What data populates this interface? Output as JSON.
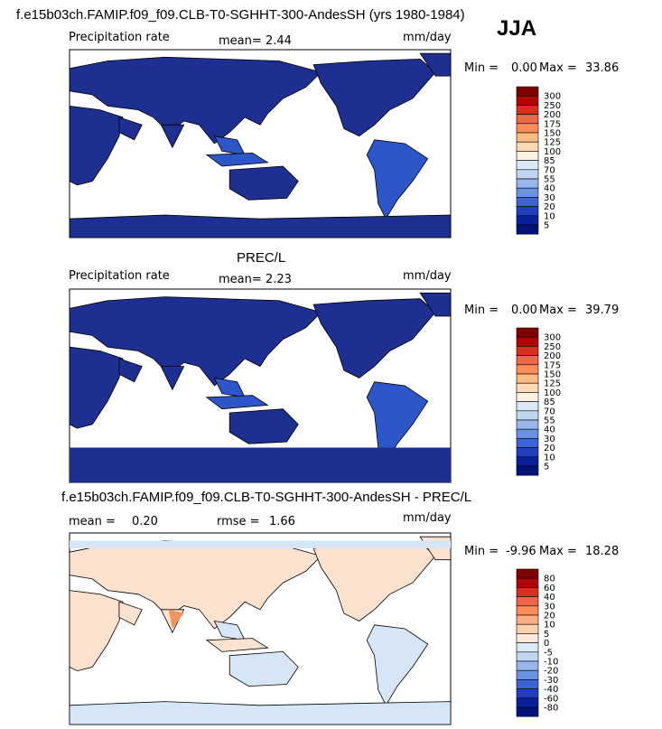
{
  "header": {
    "title": "f.e15b03ch.FAMIP.f09_f09.CLB-T0-SGHHT-300-AndesSH (yrs 1980-1984)",
    "season": "JJA"
  },
  "panels": [
    {
      "id": "model",
      "label_left": "Precipitation rate",
      "mean_label": "mean=",
      "mean_value": "2.44",
      "units": "mm/day",
      "min_label": "Min =",
      "min_value": "0.00",
      "max_label": "Max =",
      "max_value": "33.86",
      "colorbar_id": "prec",
      "style": "abs"
    },
    {
      "id": "obs",
      "title": "PREC/L",
      "label_left": "Precipitation rate",
      "mean_label": "mean=",
      "mean_value": "2.23",
      "units": "mm/day",
      "min_label": "Min =",
      "min_value": "0.00",
      "max_label": "Max =",
      "max_value": "39.79",
      "colorbar_id": "prec",
      "style": "obs"
    },
    {
      "id": "diff",
      "title": "f.e15b03ch.FAMIP.f09_f09.CLB-T0-SGHHT-300-AndesSH - PREC/L",
      "mean_label": "mean =",
      "mean_value": "0.20",
      "rmse_label": "rmse =",
      "rmse_value": "1.66",
      "units": "mm/day",
      "min_label": "Min =",
      "min_value": "-9.96",
      "max_label": "Max =",
      "max_value": "18.28",
      "colorbar_id": "diff",
      "style": "diff"
    }
  ],
  "colorbars": {
    "prec": {
      "labels": [
        "300",
        "250",
        "200",
        "175",
        "150",
        "125",
        "100",
        "85",
        "70",
        "55",
        "40",
        "30",
        "20",
        "10",
        "5"
      ],
      "colors": [
        "#7f0000",
        "#b30000",
        "#d7301f",
        "#ef6548",
        "#fc8d59",
        "#fdbb84",
        "#fdd9b5",
        "#fff2e2",
        "#dbe9f6",
        "#c0d5f2",
        "#97b7ec",
        "#6a93e3",
        "#3d63d8",
        "#1f3fbf",
        "#0a1f9a",
        "#00137a"
      ]
    },
    "diff": {
      "labels": [
        "80",
        "60",
        "40",
        "30",
        "20",
        "10",
        "5",
        "0",
        "-5",
        "-10",
        "-20",
        "-30",
        "-40",
        "-60",
        "-80"
      ],
      "colors": [
        "#7f0000",
        "#b30000",
        "#d7301f",
        "#ef6548",
        "#fc8d59",
        "#fdae82",
        "#fdd0ae",
        "#fde9d9",
        "#dceaf8",
        "#c0d5f2",
        "#97b7ec",
        "#6a93e3",
        "#3d63d8",
        "#1f3fbf",
        "#0a1f9a",
        "#00137a"
      ]
    }
  },
  "map_colors": {
    "ocean": "#ffffff",
    "land_dry": "#1d2f91",
    "land_wet": "#2d56c9",
    "diff_pos": "#fde3cf",
    "diff_neg": "#d6e6f7",
    "diff_strong": "#f09560"
  },
  "chart_data": [
    {
      "type": "heatmap",
      "title": "Precipitation rate",
      "units": "mm/day",
      "stats": {
        "mean": 2.44,
        "min": 0.0,
        "max": 33.86
      },
      "levels": [
        5,
        10,
        20,
        30,
        40,
        55,
        70,
        85,
        100,
        125,
        150,
        175,
        200,
        250,
        300
      ]
    },
    {
      "type": "heatmap",
      "title": "PREC/L",
      "units": "mm/day",
      "stats": {
        "mean": 2.23,
        "min": 0.0,
        "max": 39.79
      },
      "levels": [
        5,
        10,
        20,
        30,
        40,
        55,
        70,
        85,
        100,
        125,
        150,
        175,
        200,
        250,
        300
      ]
    },
    {
      "type": "heatmap",
      "title": "f.e15b03ch.FAMIP.f09_f09.CLB-T0-SGHHT-300-AndesSH - PREC/L",
      "units": "mm/day",
      "stats": {
        "mean": 0.2,
        "rmse": 1.66,
        "min": -9.96,
        "max": 18.28
      },
      "levels": [
        -80,
        -60,
        -40,
        -30,
        -20,
        -10,
        -5,
        0,
        5,
        10,
        20,
        30,
        40,
        60,
        80
      ]
    }
  ]
}
